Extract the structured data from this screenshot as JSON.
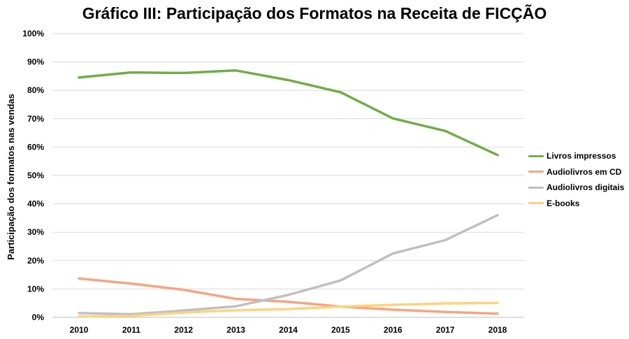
{
  "chart_data": {
    "type": "line",
    "title": "Gráfico III:  Participação dos Formatos na Receita de FICÇÃO",
    "xlabel": "",
    "ylabel": "Participação dos formatos nas vendas",
    "categories": [
      "2010",
      "2011",
      "2012",
      "2013",
      "2014",
      "2015",
      "2016",
      "2017",
      "2018"
    ],
    "ylim": [
      0,
      100
    ],
    "yticks": [
      "0%",
      "10%",
      "20%",
      "30%",
      "40%",
      "50%",
      "60%",
      "70%",
      "80%",
      "90%",
      "100%"
    ],
    "grid": true,
    "legend_position": "right",
    "series": [
      {
        "name": "Livros impressos",
        "color": "#70ad47",
        "values": [
          84.5,
          86.3,
          86.1,
          87.0,
          83.6,
          79.3,
          70.1,
          65.7,
          57.2
        ]
      },
      {
        "name": "Audiolivros em CD",
        "color": "#f4a582",
        "values": [
          13.7,
          11.9,
          9.7,
          6.5,
          5.5,
          3.8,
          2.7,
          1.9,
          1.3
        ]
      },
      {
        "name": "Audiolivros digitais",
        "color": "#bfbfbf",
        "values": [
          1.5,
          1.1,
          2.4,
          3.9,
          7.9,
          13.0,
          22.5,
          27.2,
          36.0
        ]
      },
      {
        "name": "E-books",
        "color": "#ffd27f",
        "values": [
          0.3,
          0.5,
          1.7,
          2.5,
          2.9,
          3.8,
          4.4,
          4.9,
          5.1
        ]
      }
    ]
  }
}
